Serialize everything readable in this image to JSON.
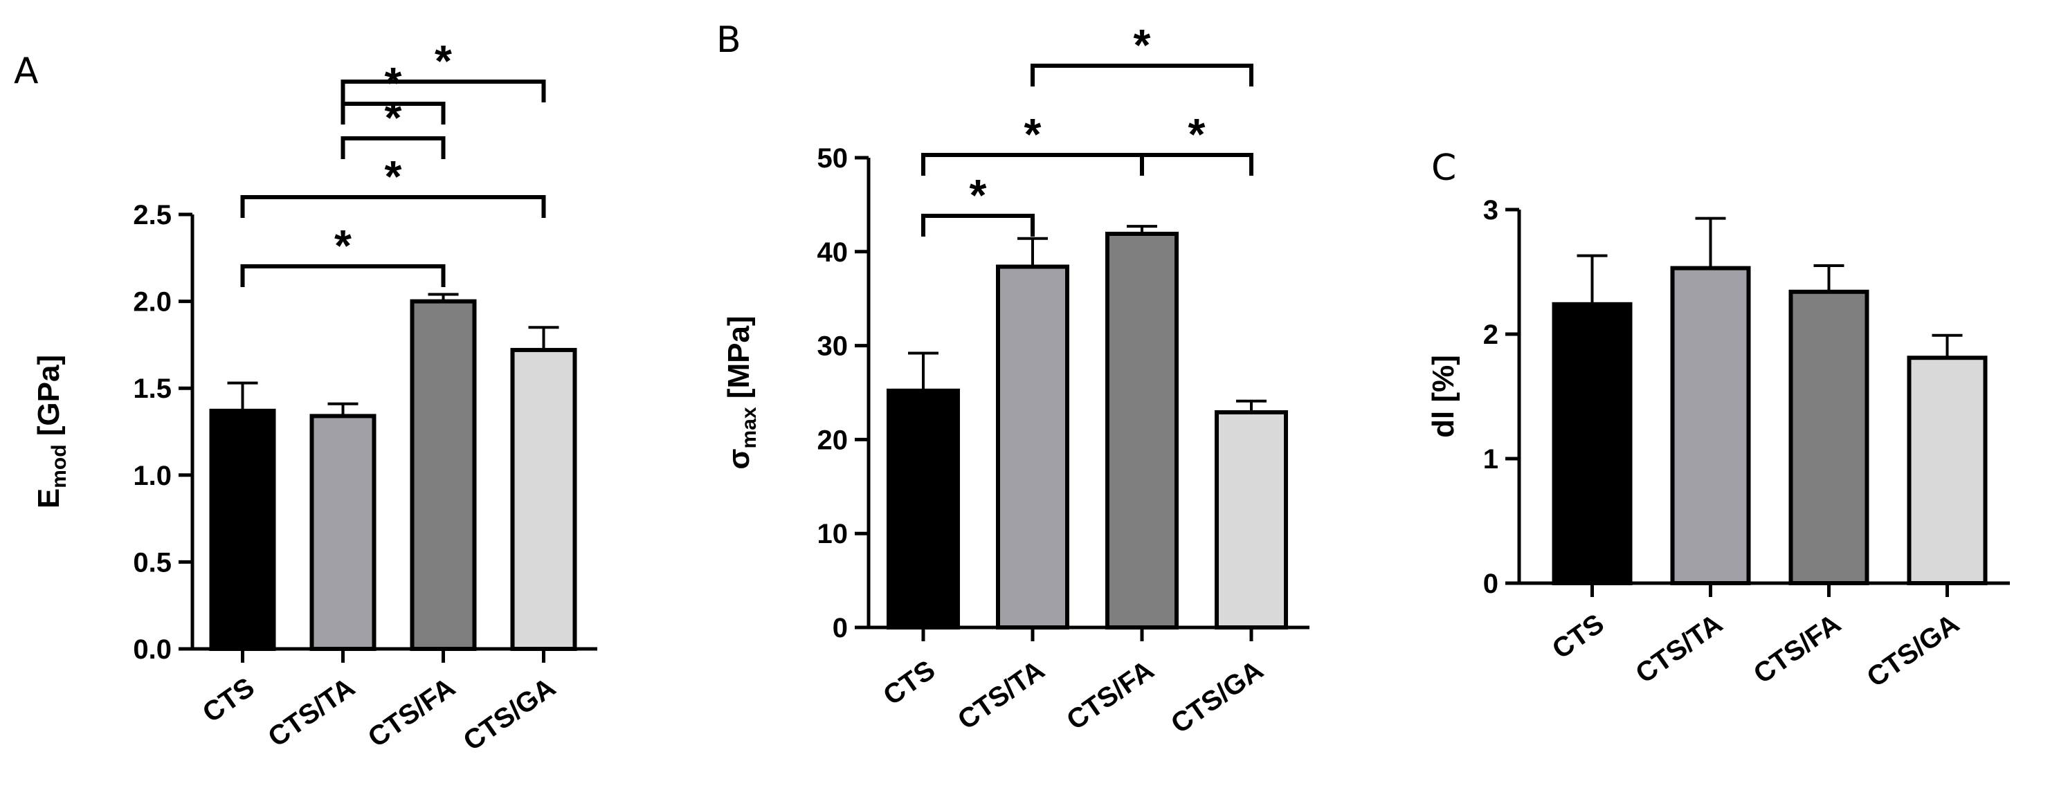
{
  "chart_data": [
    {
      "type": "bar",
      "panel_label": "A",
      "categories": [
        "CTS",
        "CTS/TA",
        "CTS/FA",
        "CTS/GA"
      ],
      "values": [
        1.37,
        1.34,
        2.0,
        1.72
      ],
      "error": [
        0.16,
        0.07,
        0.04,
        0.13
      ],
      "colors": [
        "#000000",
        "#a0a0a6",
        "#7f7f7f",
        "#d9d9d9"
      ],
      "ylabel": {
        "main": "E",
        "sub": "mod",
        "rest": " [GPa]"
      },
      "ylim": [
        0,
        2.5
      ],
      "yticks": [
        "0.0",
        "0.5",
        "1.0",
        "1.5",
        "2.0",
        "2.5"
      ],
      "significance": [
        {
          "from": 0,
          "to": 2,
          "label": "*"
        },
        {
          "from": 0,
          "to": 3,
          "label": "*"
        },
        {
          "from": 1,
          "to": 2,
          "label": "*"
        },
        {
          "from": 1,
          "to": 2,
          "label": "*"
        },
        {
          "from": 1,
          "to": 3,
          "label": "*"
        }
      ],
      "grid": false
    },
    {
      "type": "bar",
      "panel_label": "B",
      "categories": [
        "CTS",
        "CTS/TA",
        "CTS/FA",
        "CTS/GA"
      ],
      "values": [
        25.2,
        38.4,
        41.9,
        22.9
      ],
      "error": [
        4.0,
        3.0,
        0.8,
        1.2
      ],
      "colors": [
        "#000000",
        "#a0a0a6",
        "#7f7f7f",
        "#d9d9d9"
      ],
      "ylabel": {
        "main": "σ",
        "sub": "max",
        "rest": " [MPa]"
      },
      "ylim": [
        0,
        50
      ],
      "yticks": [
        "0",
        "10",
        "20",
        "30",
        "40",
        "50"
      ],
      "significance": [
        {
          "from": 0,
          "to": 1,
          "label": "*"
        },
        {
          "from": 0,
          "to": 2,
          "label": "*"
        },
        {
          "from": 2,
          "to": 3,
          "label": "*"
        },
        {
          "from": 1,
          "to": 3,
          "label": "*"
        }
      ],
      "grid": false
    },
    {
      "type": "bar",
      "panel_label": "C",
      "categories": [
        "CTS",
        "CTS/TA",
        "CTS/FA",
        "CTS/GA"
      ],
      "values": [
        2.24,
        2.53,
        2.34,
        1.81
      ],
      "error": [
        0.39,
        0.4,
        0.21,
        0.18
      ],
      "colors": [
        "#000000",
        "#a0a0a6",
        "#7f7f7f",
        "#d9d9d9"
      ],
      "ylabel": {
        "main": "dl [%]",
        "sub": "",
        "rest": ""
      },
      "ylim": [
        0,
        3
      ],
      "yticks": [
        "0",
        "1",
        "2",
        "3"
      ],
      "significance": [],
      "grid": false
    }
  ]
}
